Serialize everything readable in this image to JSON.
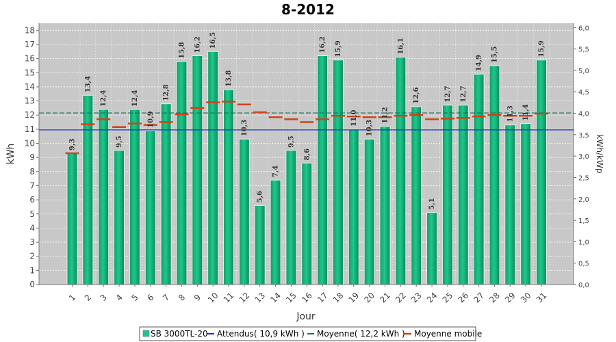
{
  "chart_data": {
    "type": "bar",
    "title": "8-2012",
    "xlabel": "Jour",
    "ylabel": "kWh",
    "y2label": "kWh/kWp",
    "ylim": [
      0,
      18.5
    ],
    "y2lim": [
      0,
      6.1
    ],
    "grid": true,
    "legend_position": "bottom-center",
    "categories": [
      "1",
      "2",
      "3",
      "4",
      "5",
      "6",
      "7",
      "8",
      "9",
      "10",
      "11",
      "12",
      "13",
      "14",
      "15",
      "16",
      "17",
      "18",
      "19",
      "20",
      "21",
      "22",
      "23",
      "24",
      "25",
      "26",
      "27",
      "28",
      "29",
      "30",
      "31"
    ],
    "y_ticks": [
      "0",
      "1",
      "2",
      "3",
      "4",
      "5",
      "6",
      "7",
      "8",
      "9",
      "10",
      "11",
      "12",
      "13",
      "14",
      "15",
      "16",
      "17",
      "18"
    ],
    "y2_ticks": [
      "0,0",
      "0,5",
      "1,0",
      "1,5",
      "2,0",
      "2,5",
      "3,0",
      "3,5",
      "4,0",
      "4,5",
      "5,0",
      "5,5",
      "6,0"
    ],
    "series": [
      {
        "name": "SB 3000TL-20",
        "kind": "bar",
        "color": "#1ec88a",
        "values": [
          9.3,
          13.4,
          12.4,
          9.5,
          12.4,
          10.9,
          12.8,
          15.8,
          16.2,
          16.5,
          13.8,
          10.3,
          5.6,
          7.4,
          9.5,
          8.6,
          16.2,
          15.9,
          11.0,
          10.3,
          11.2,
          16.1,
          12.6,
          5.1,
          12.7,
          12.7,
          14.9,
          15.5,
          11.3,
          11.4,
          15.9
        ],
        "labels": [
          "9,3",
          "13,4",
          "12,4",
          "9,5",
          "12,4",
          "10,9",
          "12,8",
          "15,8",
          "16,2",
          "16,5",
          "13,8",
          "10,3",
          "5,6",
          "7,4",
          "9,5",
          "8,6",
          "16,2",
          "15,9",
          "11,0",
          "10,3",
          "11,2",
          "16,1",
          "12,6",
          "5,1",
          "12,7",
          "12,7",
          "14,9",
          "15,5",
          "11,3",
          "11,4",
          "15,9"
        ]
      },
      {
        "name": "Attendus( 10,9 kWh )",
        "kind": "hline",
        "color": "#1a2fd0",
        "value": 10.95
      },
      {
        "name": "Moyenne( 12,2 kWh )",
        "kind": "hline-dashed",
        "color": "#1f6f5a",
        "value": 12.15
      },
      {
        "name": "Moyenne mobile",
        "kind": "step",
        "color": "#d0421a",
        "values": [
          9.3,
          11.35,
          11.7,
          11.15,
          11.4,
          11.3,
          11.5,
          12.05,
          12.5,
          12.9,
          12.95,
          12.75,
          12.2,
          11.85,
          11.7,
          11.5,
          11.7,
          11.95,
          11.9,
          11.85,
          11.85,
          11.95,
          12.0,
          11.7,
          11.75,
          11.8,
          11.9,
          12.0,
          11.95,
          11.95,
          12.1
        ]
      }
    ]
  }
}
